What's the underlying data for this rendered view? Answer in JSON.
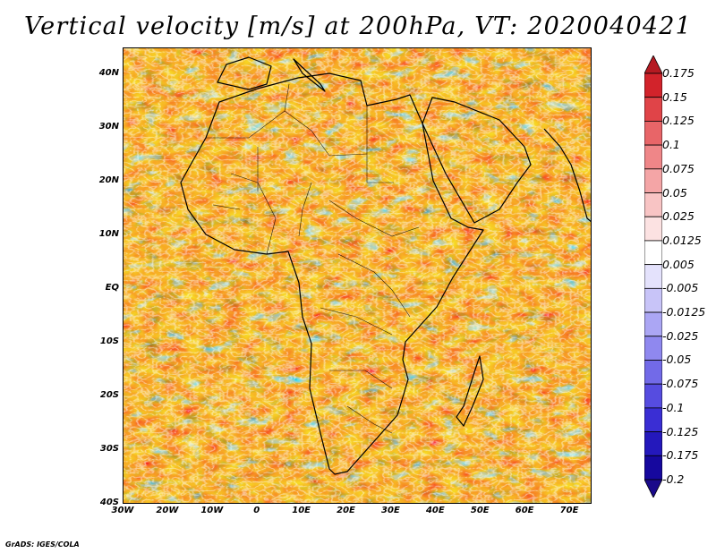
{
  "title": "Vertical velocity [m/s] at 200hPa, VT: 2020040421",
  "footer": "GrADS: IGES/COLA",
  "map": {
    "lon_range": [
      -30,
      75
    ],
    "lat_range": [
      -40,
      45
    ],
    "lat_ticks": [
      {
        "value": 40,
        "label": "40N"
      },
      {
        "value": 30,
        "label": "30N"
      },
      {
        "value": 20,
        "label": "20N"
      },
      {
        "value": 10,
        "label": "10N"
      },
      {
        "value": 0,
        "label": "EQ"
      },
      {
        "value": -10,
        "label": "10S"
      },
      {
        "value": -20,
        "label": "20S"
      },
      {
        "value": -30,
        "label": "30S"
      },
      {
        "value": -40,
        "label": "40S"
      }
    ],
    "lon_ticks": [
      {
        "value": -30,
        "label": "30W"
      },
      {
        "value": -20,
        "label": "20W"
      },
      {
        "value": -10,
        "label": "10W"
      },
      {
        "value": 0,
        "label": "0"
      },
      {
        "value": 10,
        "label": "10E"
      },
      {
        "value": 20,
        "label": "20E"
      },
      {
        "value": 30,
        "label": "30E"
      },
      {
        "value": 40,
        "label": "40E"
      },
      {
        "value": 50,
        "label": "50E"
      },
      {
        "value": 60,
        "label": "60E"
      },
      {
        "value": 70,
        "label": "70E"
      }
    ],
    "colorbar": {
      "labels": [
        "0.175",
        "0.15",
        "0.125",
        "0.1",
        "0.075",
        "0.05",
        "0.025",
        "0.0125",
        "0.005",
        "-0.005",
        "-0.0125",
        "-0.025",
        "-0.05",
        "-0.075",
        "-0.1",
        "-0.125",
        "-0.175",
        "-0.2"
      ],
      "colors": [
        "#b51a22",
        "#d2232b",
        "#e04448",
        "#e86568",
        "#ef8688",
        "#f4a5a6",
        "#f8c4c4",
        "#fce2e2",
        "#ffffff",
        "#e4e2fc",
        "#c8c4f8",
        "#aba6f4",
        "#8f88ef",
        "#726ae8",
        "#564ce0",
        "#3a2ed4",
        "#2418bc",
        "#16089e",
        "#1a0a8a"
      ]
    }
  }
}
